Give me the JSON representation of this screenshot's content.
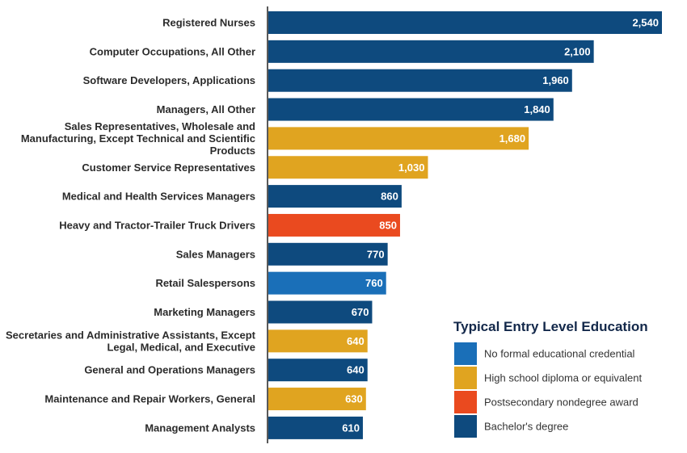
{
  "chart_data": {
    "type": "bar",
    "orientation": "horizontal",
    "categories": [
      "Registered Nurses",
      "Computer Occupations, All Other",
      "Software Developers, Applications",
      "Managers, All Other",
      "Sales Representatives, Wholesale and Manufacturing, Except Technical and Scientific Products",
      "Customer Service Representatives",
      "Medical and Health Services Managers",
      "Heavy and Tractor-Trailer Truck Drivers",
      "Sales Managers",
      "Retail Salespersons",
      "Marketing Managers",
      "Secretaries and Administrative Assistants, Except Legal, Medical, and Executive",
      "General and Operations Managers",
      "Maintenance and Repair Workers, General",
      "Management Analysts"
    ],
    "category_lines": [
      [
        "Registered Nurses"
      ],
      [
        "Computer Occupations, All Other"
      ],
      [
        "Software Developers, Applications"
      ],
      [
        "Managers, All Other"
      ],
      [
        "Sales Representatives, Wholesale and",
        "Manufacturing, Except Technical and Scientific",
        "Products"
      ],
      [
        "Customer Service Representatives"
      ],
      [
        "Medical and Health Services Managers"
      ],
      [
        "Heavy and Tractor-Trailer Truck Drivers"
      ],
      [
        "Sales Managers"
      ],
      [
        "Retail Salespersons"
      ],
      [
        "Marketing Managers"
      ],
      [
        "Secretaries and Administrative Assistants, Except",
        "Legal, Medical, and Executive"
      ],
      [
        "General and Operations Managers"
      ],
      [
        "Maintenance and Repair Workers, General"
      ],
      [
        "Management Analysts"
      ]
    ],
    "values": [
      2540,
      2100,
      1960,
      1840,
      1680,
      1030,
      860,
      850,
      770,
      760,
      670,
      640,
      640,
      630,
      610
    ],
    "value_labels": [
      "2,540",
      "2,100",
      "1,960",
      "1,840",
      "1,680",
      "1,030",
      "860",
      "850",
      "770",
      "760",
      "670",
      "640",
      "640",
      "630",
      "610"
    ],
    "education": [
      "Bachelor's degree",
      "Bachelor's degree",
      "Bachelor's degree",
      "Bachelor's degree",
      "High school diploma or equivalent",
      "High school diploma or equivalent",
      "Bachelor's degree",
      "Postsecondary nondegree award",
      "Bachelor's degree",
      "No formal educational credential",
      "Bachelor's degree",
      "High school diploma or equivalent",
      "Bachelor's degree",
      "High school diploma or equivalent",
      "Bachelor's degree"
    ],
    "xlim": [
      0,
      2540
    ],
    "grid": false,
    "legend": {
      "title": "Typical Entry Level Education",
      "placement": "bottom-right",
      "entries": [
        {
          "name": "No formal educational credential",
          "color": "#1a6fb8"
        },
        {
          "name": "High school diploma or equivalent",
          "color": "#e0a420"
        },
        {
          "name": "Postsecondary nondegree award",
          "color": "#ea4a1f"
        },
        {
          "name": "Bachelor's degree",
          "color": "#0e4a7e"
        }
      ]
    }
  }
}
